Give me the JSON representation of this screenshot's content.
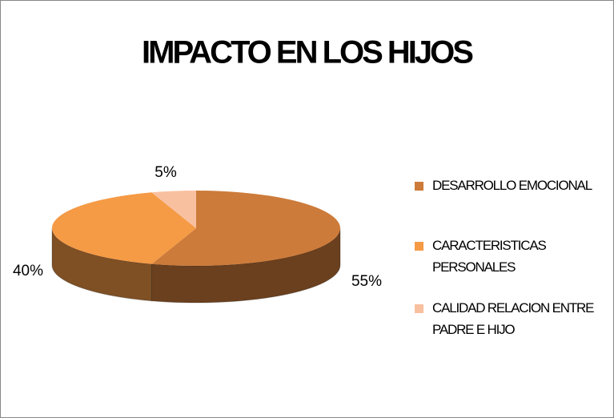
{
  "chart_data": {
    "type": "pie",
    "title": "IMPACTO EN LOS HIJOS",
    "categories": [
      "DESARROLLO EMOCIONAL",
      "CARACTERISTICAS PERSONALES",
      "CALIDAD RELACION ENTRE PADRE E HIJO"
    ],
    "values": [
      55,
      40,
      5
    ],
    "value_labels": [
      "55%",
      "40%",
      "5%"
    ],
    "colors": [
      "#cd7b3a",
      "#f59a45",
      "#f9c0a0"
    ]
  }
}
